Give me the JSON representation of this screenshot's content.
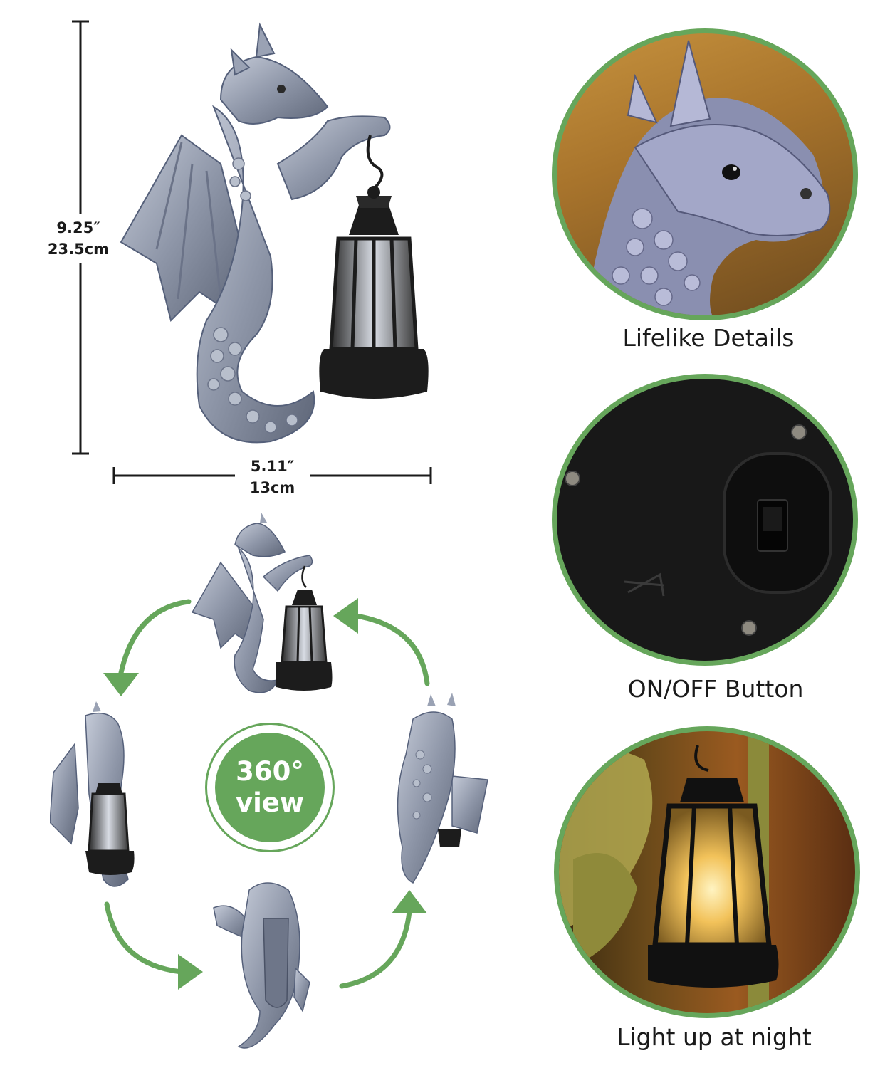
{
  "dimensions": {
    "height_in": "9.25″",
    "height_cm": "23.5cm",
    "width_in": "5.11″",
    "width_cm": "13cm"
  },
  "badge": {
    "line1": "360°",
    "line2": "view"
  },
  "features": [
    {
      "caption": "Lifelike Details"
    },
    {
      "caption": "ON/OFF Button"
    },
    {
      "caption": "Light up at night"
    }
  ],
  "colors": {
    "accent_green": "#66a65b",
    "stone_gray": "#8b93a6",
    "lantern_black": "#1c1c1c",
    "warm_light": "#f2c25a"
  },
  "icons": [
    "rotate-arrow-icon",
    "dragon-figure",
    "lantern"
  ]
}
